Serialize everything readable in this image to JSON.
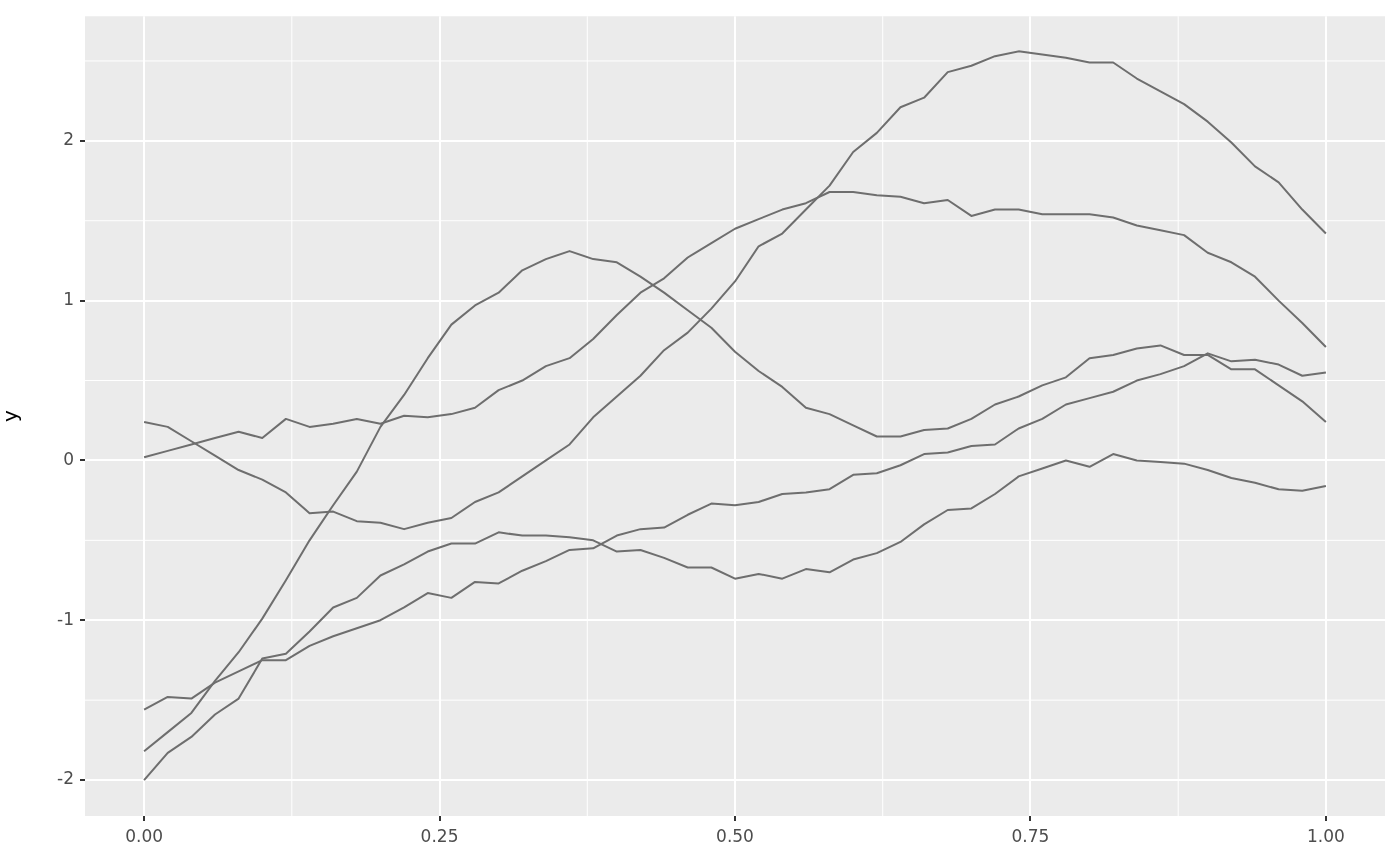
{
  "chart_data": {
    "type": "line",
    "ylabel": "y",
    "x": [
      0,
      0.02,
      0.04,
      0.06,
      0.08,
      0.1,
      0.12,
      0.14,
      0.16,
      0.18,
      0.2,
      0.22,
      0.24,
      0.26,
      0.28,
      0.3,
      0.32,
      0.34,
      0.36,
      0.38,
      0.4,
      0.42,
      0.44,
      0.46,
      0.48,
      0.5,
      0.52,
      0.54,
      0.56,
      0.58,
      0.6,
      0.62,
      0.64,
      0.66,
      0.68,
      0.7,
      0.72,
      0.74,
      0.76,
      0.78,
      0.8,
      0.82,
      0.84,
      0.86,
      0.88,
      0.9,
      0.92,
      0.94,
      0.96,
      0.98,
      1
    ],
    "series": [
      {
        "color": "#6e6e6e",
        "values": [
          0.24,
          0.21,
          0.12,
          0.03,
          -0.06,
          -0.12,
          -0.2,
          -0.33,
          -0.32,
          -0.38,
          -0.39,
          -0.43,
          -0.39,
          -0.36,
          -0.26,
          -0.2,
          -0.1,
          0,
          0.1,
          0.27,
          0.4,
          0.53,
          0.69,
          0.8,
          0.95,
          1.12,
          1.34,
          1.42,
          1.57,
          1.72,
          1.93,
          2.05,
          2.21,
          2.27,
          2.43,
          2.47,
          2.53,
          2.56,
          2.54,
          2.52,
          2.49,
          2.49,
          2.39,
          2.31,
          2.23,
          2.12,
          1.99,
          1.84,
          1.74,
          1.57,
          1.42
        ]
      },
      {
        "color": "#6e6e6e",
        "values": [
          0.02,
          0.06,
          0.1,
          0.14,
          0.18,
          0.14,
          0.26,
          0.21,
          0.23,
          0.26,
          0.23,
          0.28,
          0.27,
          0.29,
          0.33,
          0.44,
          0.5,
          0.59,
          0.64,
          0.76,
          0.91,
          1.05,
          1.14,
          1.27,
          1.36,
          1.45,
          1.51,
          1.57,
          1.61,
          1.68,
          1.68,
          1.66,
          1.65,
          1.61,
          1.63,
          1.53,
          1.57,
          1.57,
          1.54,
          1.54,
          1.54,
          1.52,
          1.47,
          1.44,
          1.41,
          1.3,
          1.24,
          1.15,
          1.0,
          0.86,
          0.71
        ]
      },
      {
        "color": "#6e6e6e",
        "values": [
          -1.82,
          -1.7,
          -1.58,
          -1.38,
          -1.2,
          -0.99,
          -0.75,
          -0.5,
          -0.28,
          -0.07,
          0.21,
          0.41,
          0.64,
          0.85,
          0.97,
          1.05,
          1.19,
          1.26,
          1.31,
          1.26,
          1.24,
          1.15,
          1.05,
          0.94,
          0.83,
          0.68,
          0.56,
          0.46,
          0.33,
          0.29,
          0.22,
          0.15,
          0.15,
          0.19,
          0.2,
          0.26,
          0.35,
          0.4,
          0.47,
          0.52,
          0.64,
          0.66,
          0.7,
          0.72,
          0.66,
          0.66,
          0.57,
          0.57,
          0.47,
          0.37,
          0.24
        ]
      },
      {
        "color": "#6e6e6e",
        "values": [
          -1.56,
          -1.48,
          -1.49,
          -1.39,
          -1.32,
          -1.25,
          -1.25,
          -1.16,
          -1.1,
          -1.05,
          -1.0,
          -0.92,
          -0.83,
          -0.86,
          -0.76,
          -0.77,
          -0.69,
          -0.63,
          -0.56,
          -0.55,
          -0.47,
          -0.43,
          -0.42,
          -0.34,
          -0.27,
          -0.28,
          -0.26,
          -0.21,
          -0.2,
          -0.18,
          -0.09,
          -0.08,
          -0.03,
          0.04,
          0.05,
          0.09,
          0.1,
          0.2,
          0.26,
          0.35,
          0.39,
          0.43,
          0.5,
          0.54,
          0.59,
          0.67,
          0.62,
          0.63,
          0.6,
          0.53,
          0.55
        ]
      },
      {
        "color": "#6e6e6e",
        "values": [
          -2.0,
          -1.83,
          -1.73,
          -1.59,
          -1.49,
          -1.24,
          -1.21,
          -1.07,
          -0.92,
          -0.86,
          -0.72,
          -0.65,
          -0.57,
          -0.52,
          -0.52,
          -0.45,
          -0.47,
          -0.47,
          -0.48,
          -0.5,
          -0.57,
          -0.56,
          -0.61,
          -0.67,
          -0.67,
          -0.74,
          -0.71,
          -0.74,
          -0.68,
          -0.7,
          -0.62,
          -0.58,
          -0.51,
          -0.4,
          -0.31,
          -0.3,
          -0.21,
          -0.1,
          -0.05,
          0,
          -0.04,
          0.04,
          0,
          -0.01,
          -0.02,
          -0.06,
          -0.11,
          -0.14,
          -0.18,
          -0.19,
          -0.16
        ]
      }
    ],
    "xlim": [
      -0.05,
      1.05
    ],
    "ylim": [
      -2.225,
      2.78
    ],
    "xticks": [
      {
        "value": 0,
        "label": "0.00"
      },
      {
        "value": 0.25,
        "label": "0.25"
      },
      {
        "value": 0.5,
        "label": "0.50"
      },
      {
        "value": 0.75,
        "label": "0.75"
      },
      {
        "value": 1,
        "label": "1.00"
      }
    ],
    "yticks": [
      -2,
      -1,
      0,
      1,
      2
    ],
    "grid": true,
    "legend": false,
    "marker": "none",
    "line_style": "solid"
  }
}
